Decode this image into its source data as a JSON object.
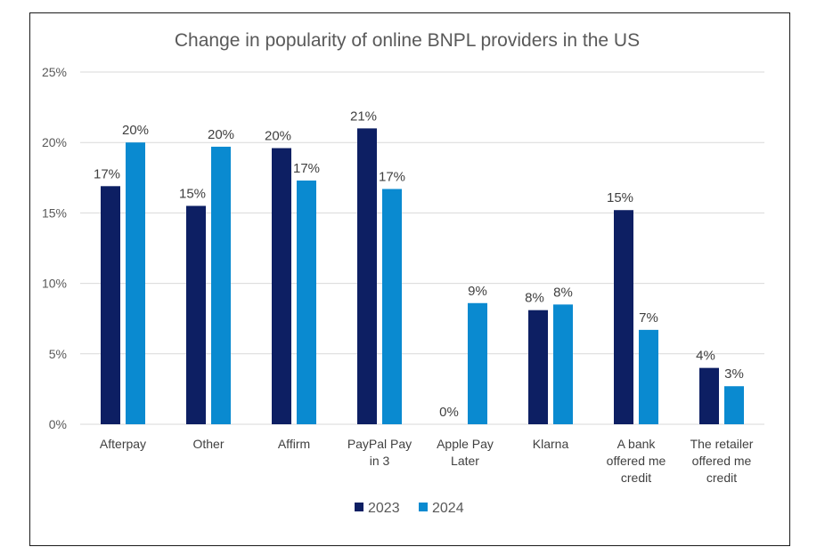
{
  "chart_data": {
    "type": "bar",
    "title": "Change in popularity of online BNPL providers in the US",
    "categories": [
      "Afterpay",
      "Other",
      "Affirm",
      "PayPal Pay in 3",
      "Apple Pay Later",
      "Klarna",
      "A bank offered me credit",
      "The retailer offered me credit"
    ],
    "series": [
      {
        "name": "2023",
        "values": [
          16.9,
          15.5,
          19.6,
          21.0,
          0,
          8.1,
          15.2,
          4.0
        ],
        "labels": [
          "17%",
          "15%",
          "20%",
          "21%",
          "0%",
          "8%",
          "15%",
          "4%"
        ],
        "color": "#0d1f63"
      },
      {
        "name": "2024",
        "values": [
          20.0,
          19.7,
          17.3,
          16.7,
          8.6,
          8.5,
          6.7,
          2.7
        ],
        "labels": [
          "20%",
          "20%",
          "17%",
          "17%",
          "9%",
          "8%",
          "7%",
          "3%"
        ],
        "color": "#0a8ad0"
      }
    ],
    "yticks": [
      "0%",
      "5%",
      "10%",
      "15%",
      "20%",
      "25%"
    ],
    "ylim": [
      0,
      25
    ],
    "grid": true,
    "legend_position": "bottom"
  }
}
